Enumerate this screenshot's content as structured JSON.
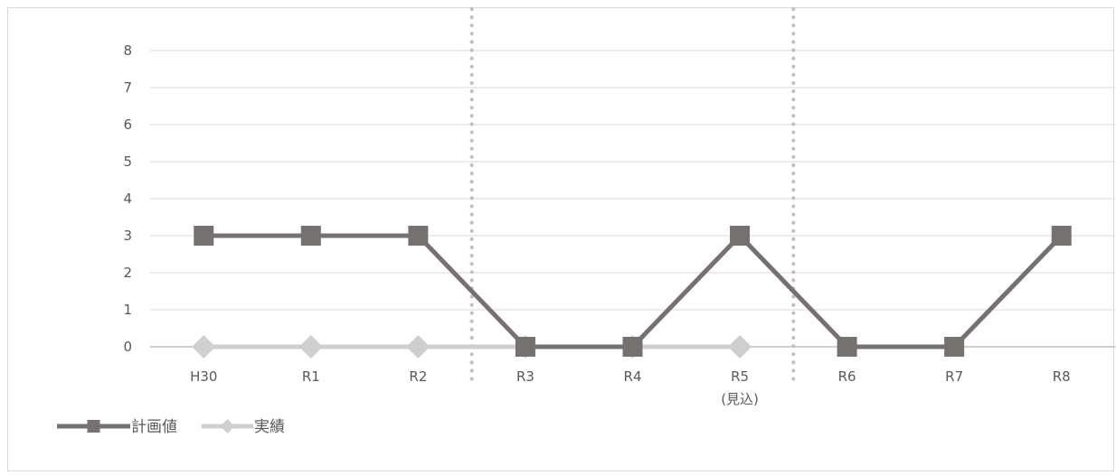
{
  "chart_data": {
    "type": "line",
    "categories": [
      "H30",
      "R1",
      "R2",
      "R3",
      "R4",
      "R5",
      "R6",
      "R7",
      "R8"
    ],
    "category_sublabels": [
      "",
      "",
      "",
      "",
      "",
      "(見込)",
      "",
      "",
      ""
    ],
    "series": [
      {
        "name": "計画値",
        "values": [
          3,
          3,
          3,
          0,
          0,
          3,
          0,
          0,
          3
        ],
        "color": "#767171",
        "marker": "square"
      },
      {
        "name": "実績",
        "values": [
          0,
          0,
          0,
          0,
          0,
          0,
          null,
          null,
          null
        ],
        "color": "#d0cece",
        "marker": "diamond"
      }
    ],
    "ylim": [
      0,
      8
    ],
    "yticks": [
      0,
      1,
      2,
      3,
      4,
      5,
      6,
      7,
      8
    ],
    "grid": true,
    "period_dividers_between": [
      [
        2,
        3
      ],
      [
        5,
        6
      ]
    ],
    "legend_position": "bottom-left",
    "title": "",
    "xlabel": "",
    "ylabel": ""
  }
}
